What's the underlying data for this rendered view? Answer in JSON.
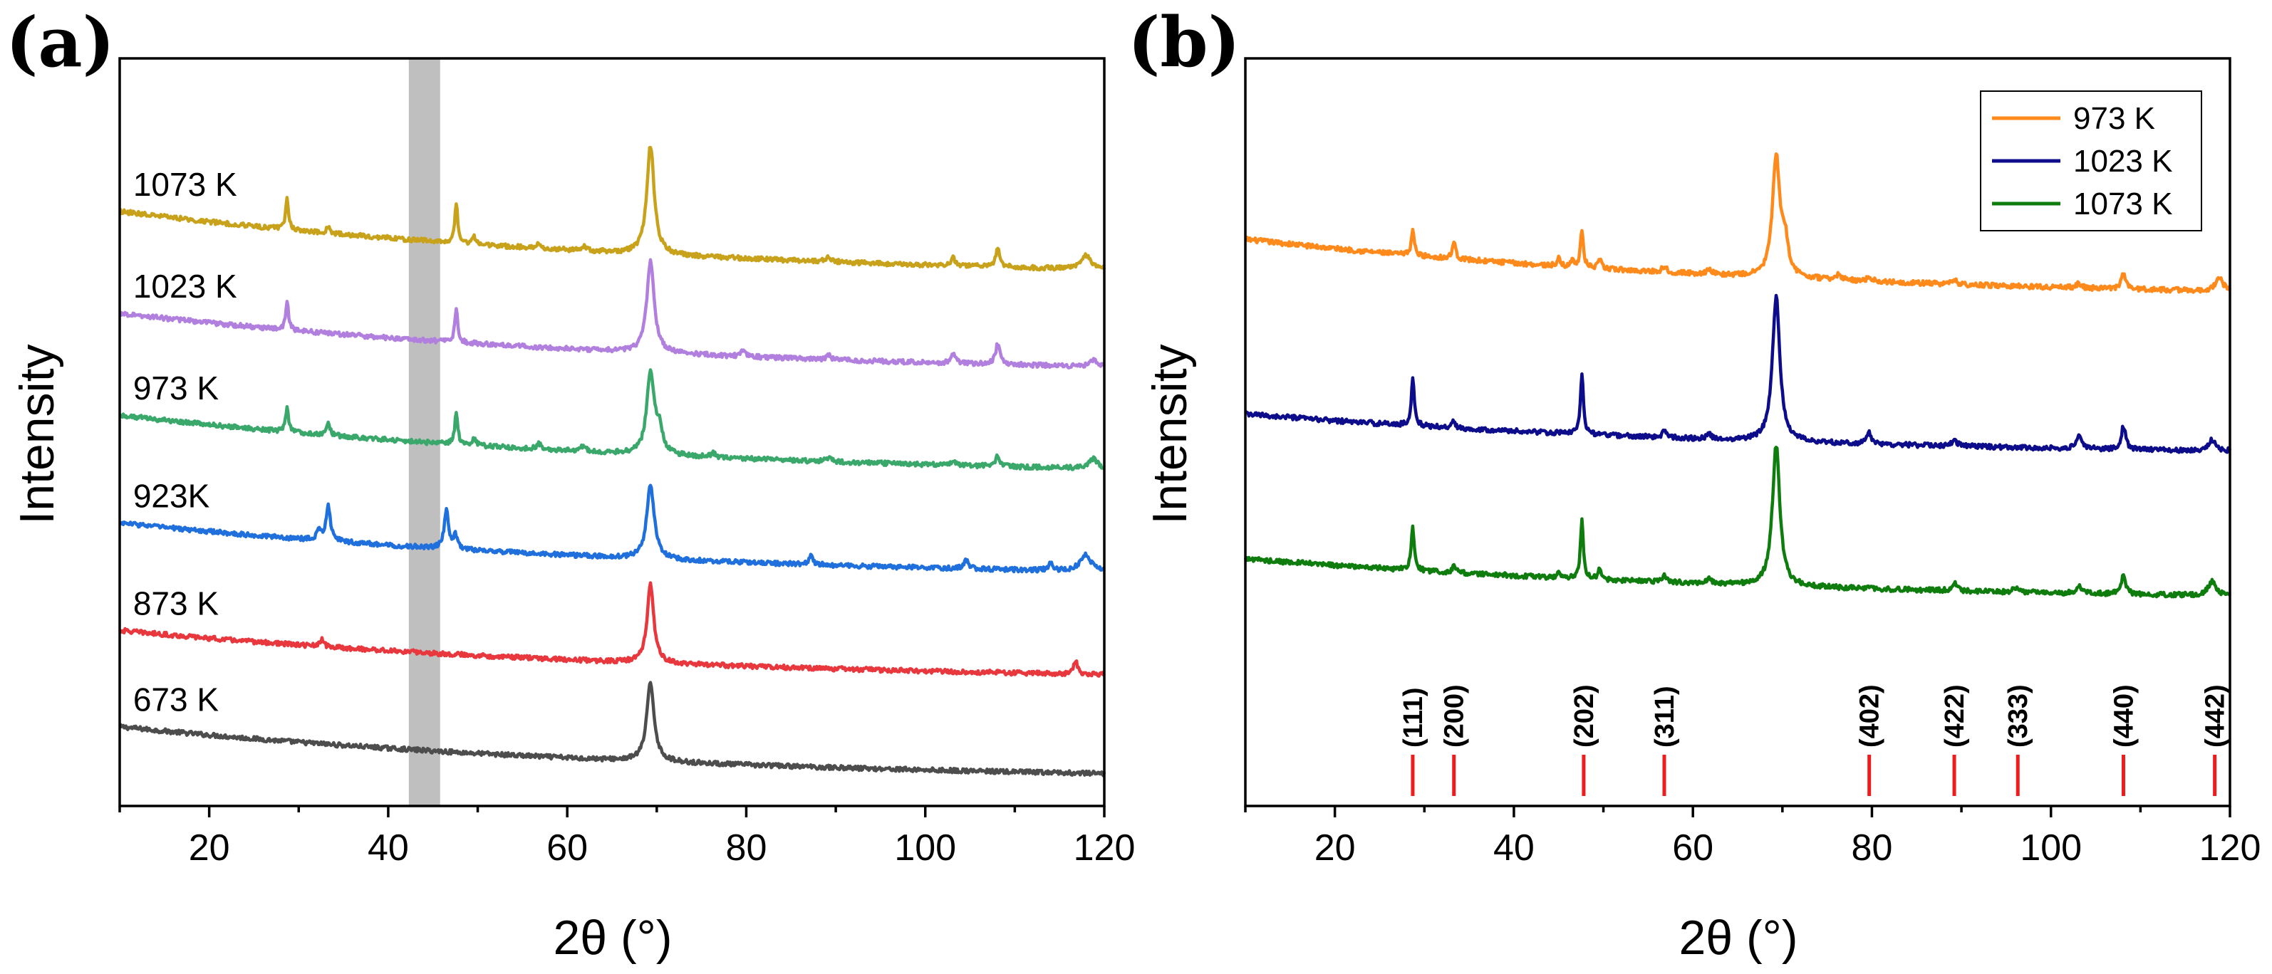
{
  "panels": [
    {
      "id": "a",
      "letter": "(a)",
      "xlabel": "2θ (°)",
      "ylabel": "Intensity",
      "shaded_region": [
        42.3,
        45.8
      ],
      "shaded_color": "#bfbfbf"
    },
    {
      "id": "b",
      "letter": "(b)",
      "xlabel": "2θ (°)",
      "ylabel": "Intensity"
    }
  ],
  "chart_data": [
    {
      "type": "line",
      "title": "(a)",
      "xlabel": "2θ (°)",
      "ylabel": "Intensity",
      "xlim": [
        10,
        120
      ],
      "ylim": [
        0,
        6.6
      ],
      "xticks": [
        20,
        40,
        60,
        80,
        100,
        120
      ],
      "grid": false,
      "legend": "none",
      "series": [
        {
          "name": "673 K",
          "label": "673 K",
          "color": "#4d4d4d",
          "offset": 0.15,
          "base_start": 0.55,
          "base_end": 0.05,
          "peak_scale": 0.6,
          "peaks": [
            [
              69.3,
              1.15,
              0.5
            ]
          ],
          "noise": 0.02
        },
        {
          "name": "873 K",
          "label": "873 K",
          "color": "#e8383d",
          "offset": 1.05,
          "base_start": 0.5,
          "base_end": 0.03,
          "peak_scale": 0.6,
          "peaks": [
            [
              69.3,
              1.15,
              0.45
            ],
            [
              32.6,
              0.1,
              0.25
            ],
            [
              116.8,
              0.2,
              0.25
            ]
          ],
          "noise": 0.02
        },
        {
          "name": "923K",
          "label": "923K",
          "color": "#1f6fdc",
          "offset": 1.95,
          "base_start": 0.55,
          "base_end": 0.03,
          "peak_scale": 0.6,
          "peaks": [
            [
              69.3,
              1.1,
              0.5
            ],
            [
              33.3,
              0.5,
              0.3
            ],
            [
              32.3,
              0.15,
              0.3
            ],
            [
              46.5,
              0.55,
              0.3
            ],
            [
              47.5,
              0.2,
              0.25
            ],
            [
              87.2,
              0.12,
              0.3
            ],
            [
              104.6,
              0.12,
              0.3
            ],
            [
              114.0,
              0.1,
              0.3
            ],
            [
              117.9,
              0.25,
              0.7
            ]
          ],
          "noise": 0.02
        },
        {
          "name": "973 K",
          "label": "973 K",
          "color": "#3aa86b",
          "offset": 2.85,
          "base_start": 0.6,
          "base_end": 0.03,
          "peak_scale": 0.6,
          "peaks": [
            [
              69.3,
              1.2,
              0.5
            ],
            [
              70.3,
              0.35,
              0.4
            ],
            [
              28.7,
              0.35,
              0.2
            ],
            [
              33.3,
              0.22,
              0.2
            ],
            [
              47.6,
              0.45,
              0.2
            ],
            [
              49.6,
              0.12,
              0.2
            ],
            [
              56.8,
              0.08,
              0.3
            ],
            [
              61.8,
              0.08,
              0.3
            ],
            [
              76.3,
              0.06,
              0.3
            ],
            [
              89.2,
              0.06,
              0.3
            ],
            [
              103.1,
              0.06,
              0.3
            ],
            [
              108.1,
              0.15,
              0.3
            ],
            [
              118.8,
              0.15,
              0.5
            ]
          ],
          "noise": 0.02
        },
        {
          "name": "1023 K",
          "label": "1023 K",
          "color": "#b17fde",
          "offset": 3.75,
          "base_start": 0.6,
          "base_end": 0.03,
          "peak_scale": 0.6,
          "peaks": [
            [
              69.3,
              1.35,
              0.5
            ],
            [
              28.7,
              0.4,
              0.2
            ],
            [
              47.6,
              0.5,
              0.2
            ],
            [
              79.7,
              0.1,
              0.3
            ],
            [
              89.2,
              0.06,
              0.3
            ],
            [
              103.1,
              0.15,
              0.3
            ],
            [
              108.1,
              0.3,
              0.3
            ],
            [
              118.8,
              0.1,
              0.5
            ]
          ],
          "noise": 0.02
        },
        {
          "name": "1073 K",
          "label": "1073 K",
          "color": "#c9a21b",
          "offset": 4.6,
          "base_start": 0.65,
          "base_end": 0.03,
          "peak_scale": 0.6,
          "peaks": [
            [
              69.3,
              1.6,
              0.5
            ],
            [
              28.7,
              0.45,
              0.2
            ],
            [
              33.3,
              0.1,
              0.2
            ],
            [
              47.6,
              0.6,
              0.2
            ],
            [
              49.6,
              0.1,
              0.2
            ],
            [
              56.8,
              0.06,
              0.3
            ],
            [
              61.8,
              0.06,
              0.3
            ],
            [
              89.2,
              0.08,
              0.3
            ],
            [
              103.1,
              0.12,
              0.3
            ],
            [
              108.1,
              0.25,
              0.3
            ],
            [
              118.0,
              0.2,
              0.6
            ]
          ],
          "noise": 0.02
        }
      ]
    },
    {
      "type": "line",
      "title": "(b)",
      "xlabel": "2θ (°)",
      "ylabel": "Intensity",
      "xlim": [
        10,
        120
      ],
      "ylim": [
        0,
        6.2
      ],
      "xticks": [
        20,
        40,
        60,
        80,
        100,
        120
      ],
      "grid": false,
      "legend": "top-right",
      "series": [
        {
          "name": "973 K",
          "label": "973 K",
          "color": "#ff8a1c",
          "offset": 4.15,
          "base_start": 0.55,
          "base_end": 0.03,
          "peak_scale": 0.6,
          "peaks": [
            [
              69.3,
              1.65,
              0.5
            ],
            [
              70.3,
              0.45,
              0.4
            ],
            [
              28.7,
              0.35,
              0.2
            ],
            [
              33.3,
              0.25,
              0.2
            ],
            [
              45.0,
              0.1,
              0.2
            ],
            [
              46.6,
              0.1,
              0.2
            ],
            [
              47.6,
              0.5,
              0.2
            ],
            [
              49.6,
              0.12,
              0.2
            ],
            [
              56.8,
              0.08,
              0.3
            ],
            [
              61.8,
              0.08,
              0.3
            ],
            [
              76.3,
              0.08,
              0.3
            ],
            [
              79.7,
              0.06,
              0.3
            ],
            [
              89.2,
              0.06,
              0.3
            ],
            [
              103.1,
              0.06,
              0.3
            ],
            [
              108.1,
              0.2,
              0.3
            ],
            [
              118.8,
              0.18,
              0.5
            ]
          ],
          "noise": 0.02
        },
        {
          "name": "1023 K",
          "label": "1023 K",
          "color": "#0d0d8c",
          "offset": 2.85,
          "base_start": 0.4,
          "base_end": 0.03,
          "peak_scale": 0.6,
          "peaks": [
            [
              69.3,
              2.0,
              0.5
            ],
            [
              28.7,
              0.65,
              0.2
            ],
            [
              33.3,
              0.1,
              0.2
            ],
            [
              47.6,
              0.85,
              0.2
            ],
            [
              56.8,
              0.08,
              0.3
            ],
            [
              61.8,
              0.06,
              0.3
            ],
            [
              79.7,
              0.15,
              0.3
            ],
            [
              89.2,
              0.1,
              0.3
            ],
            [
              103.1,
              0.2,
              0.3
            ],
            [
              108.1,
              0.32,
              0.3
            ],
            [
              118.0,
              0.15,
              0.5
            ]
          ],
          "noise": 0.02
        },
        {
          "name": "1073 K",
          "label": "1073 K",
          "color": "#0e7d0e",
          "offset": 1.65,
          "base_start": 0.4,
          "base_end": 0.03,
          "peak_scale": 0.6,
          "peaks": [
            [
              69.3,
              1.95,
              0.5
            ],
            [
              28.7,
              0.6,
              0.2
            ],
            [
              33.3,
              0.12,
              0.2
            ],
            [
              45.0,
              0.08,
              0.2
            ],
            [
              47.6,
              0.8,
              0.2
            ],
            [
              49.6,
              0.15,
              0.2
            ],
            [
              56.8,
              0.08,
              0.3
            ],
            [
              61.8,
              0.08,
              0.3
            ],
            [
              89.2,
              0.12,
              0.3
            ],
            [
              96.0,
              0.06,
              0.3
            ],
            [
              103.1,
              0.12,
              0.3
            ],
            [
              108.1,
              0.25,
              0.3
            ],
            [
              118.0,
              0.2,
              0.5
            ]
          ],
          "noise": 0.02
        }
      ],
      "reference_lines": {
        "color": "#ee1c1c",
        "positions": [
          {
            "hkl": "(111)",
            "x": 28.7
          },
          {
            "hkl": "(200)",
            "x": 33.3
          },
          {
            "hkl": "(202)",
            "x": 47.8
          },
          {
            "hkl": "(311)",
            "x": 56.8
          },
          {
            "hkl": "(402)",
            "x": 79.7
          },
          {
            "hkl": "(422)",
            "x": 89.2
          },
          {
            "hkl": "(333)",
            "x": 96.3
          },
          {
            "hkl": "(440)",
            "x": 108.1
          },
          {
            "hkl": "(442)",
            "x": 118.3
          }
        ]
      }
    }
  ]
}
